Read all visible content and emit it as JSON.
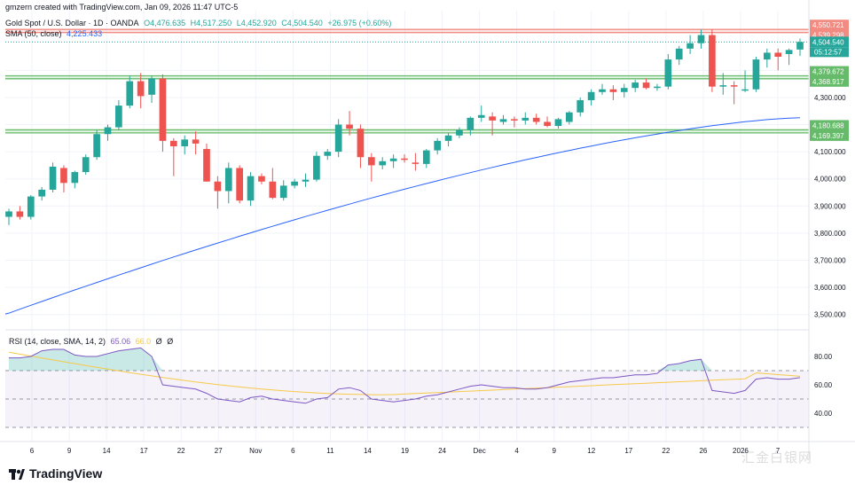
{
  "header": {
    "credit": "gmzern created with TradingView.com, Jan 09, 2026 11:47 UTC-5",
    "symbol_line": "Gold Spot / U.S. Dollar · 1D · OANDA",
    "open": "O4,476.635",
    "high": "H4,517.250",
    "low": "L4,452.920",
    "close": "C4,504.540",
    "change": "+26.975 (+0.60%)",
    "sma_label": "SMA (50, close)",
    "sma_value": "4,225.433"
  },
  "rsi_legend": {
    "label": "RSI (14, close, SMA, 14, 2)",
    "rsi_value": "65.06",
    "sma_value": "66.0",
    "extra1": "Ø",
    "extra2": "Ø"
  },
  "brand": {
    "name": "TradingView"
  },
  "watermark": "汇金白银网",
  "colors": {
    "up": "#26a69a",
    "down": "#ef5350",
    "sma": "#2962ff",
    "rsi": "#7e57c2",
    "rsi_ma": "#f7c948",
    "resistance": "#f28b82",
    "support": "#66bb6a",
    "bg": "#ffffff",
    "grid": "#f0f3fa"
  },
  "chart_data": [
    {
      "type": "candlestick",
      "currency": "USD",
      "ylim": [
        3450,
        4620
      ],
      "yticks": [
        3500,
        3600,
        3700,
        3800,
        3900,
        4000,
        4100,
        4200,
        4300,
        4400
      ],
      "xticks": [
        "6",
        "9",
        "14",
        "17",
        "22",
        "27",
        "Nov",
        "6",
        "11",
        "14",
        "19",
        "24",
        "Dec",
        "4",
        "9",
        "12",
        "17",
        "22",
        "26",
        "2026",
        "7"
      ],
      "ohlc": [
        [
          3860,
          3890,
          3830,
          3880
        ],
        [
          3880,
          3900,
          3850,
          3860
        ],
        [
          3860,
          3940,
          3850,
          3935
        ],
        [
          3935,
          3970,
          3920,
          3960
        ],
        [
          3960,
          4060,
          3950,
          4045
        ],
        [
          4040,
          4050,
          3950,
          3985
        ],
        [
          3985,
          4030,
          3965,
          4025
        ],
        [
          4025,
          4090,
          4015,
          4080
        ],
        [
          4080,
          4180,
          4070,
          4165
        ],
        [
          4165,
          4200,
          4140,
          4190
        ],
        [
          4190,
          4290,
          4180,
          4270
        ],
        [
          4270,
          4380,
          4260,
          4360
        ],
        [
          4360,
          4390,
          4260,
          4305
        ],
        [
          4310,
          4380,
          4280,
          4370
        ],
        [
          4370,
          4385,
          4100,
          4140
        ],
        [
          4140,
          4150,
          4010,
          4120
        ],
        [
          4120,
          4160,
          4090,
          4145
        ],
        [
          4145,
          4175,
          4090,
          4130
        ],
        [
          4110,
          4130,
          3990,
          3990
        ],
        [
          3990,
          4010,
          3890,
          3955
        ],
        [
          3955,
          4060,
          3910,
          4040
        ],
        [
          4040,
          4050,
          3910,
          3920
        ],
        [
          3920,
          4025,
          3900,
          4010
        ],
        [
          4010,
          4020,
          3980,
          3990
        ],
        [
          3990,
          4040,
          3925,
          3930
        ],
        [
          3930,
          3995,
          3920,
          3975
        ],
        [
          3975,
          4000,
          3965,
          3990
        ],
        [
          3990,
          4020,
          3970,
          3997
        ],
        [
          3997,
          4100,
          3990,
          4085
        ],
        [
          4085,
          4110,
          4070,
          4100
        ],
        [
          4100,
          4220,
          4080,
          4200
        ],
        [
          4200,
          4250,
          4160,
          4185
        ],
        [
          4185,
          4200,
          4040,
          4080
        ],
        [
          4080,
          4095,
          3990,
          4050
        ],
        [
          4050,
          4080,
          4035,
          4065
        ],
        [
          4065,
          4090,
          4040,
          4075
        ],
        [
          4075,
          4090,
          4060,
          4070
        ],
        [
          4060,
          4095,
          4030,
          4055
        ],
        [
          4055,
          4110,
          4040,
          4105
        ],
        [
          4105,
          4150,
          4090,
          4140
        ],
        [
          4140,
          4170,
          4120,
          4160
        ],
        [
          4160,
          4190,
          4150,
          4180
        ],
        [
          4180,
          4230,
          4160,
          4225
        ],
        [
          4225,
          4270,
          4210,
          4235
        ],
        [
          4230,
          4245,
          4160,
          4215
        ],
        [
          4210,
          4235,
          4200,
          4220
        ],
        [
          4220,
          4230,
          4190,
          4215
        ],
        [
          4215,
          4245,
          4200,
          4225
        ],
        [
          4225,
          4240,
          4200,
          4210
        ],
        [
          4210,
          4230,
          4190,
          4195
        ],
        [
          4195,
          4225,
          4185,
          4220
        ],
        [
          4210,
          4250,
          4200,
          4245
        ],
        [
          4245,
          4300,
          4230,
          4290
        ],
        [
          4290,
          4330,
          4270,
          4320
        ],
        [
          4320,
          4350,
          4310,
          4330
        ],
        [
          4330,
          4345,
          4290,
          4320
        ],
        [
          4320,
          4350,
          4300,
          4335
        ],
        [
          4335,
          4365,
          4320,
          4355
        ],
        [
          4355,
          4370,
          4330,
          4335
        ],
        [
          4335,
          4350,
          4325,
          4340
        ],
        [
          4340,
          4460,
          4330,
          4440
        ],
        [
          4440,
          4490,
          4420,
          4480
        ],
        [
          4480,
          4530,
          4460,
          4500
        ],
        [
          4500,
          4550,
          4480,
          4530
        ],
        [
          4530,
          4550,
          4320,
          4340
        ],
        [
          4340,
          4390,
          4310,
          4345
        ],
        [
          4345,
          4360,
          4275,
          4340
        ],
        [
          4325,
          4400,
          4320,
          4330
        ],
        [
          4330,
          4450,
          4320,
          4440
        ],
        [
          4440,
          4480,
          4410,
          4465
        ],
        [
          4465,
          4480,
          4400,
          4450
        ],
        [
          4460,
          4480,
          4420,
          4475
        ],
        [
          4476.635,
          4517.25,
          4452.92,
          4504.54
        ]
      ],
      "sma50": {
        "name": "SMA (50, close)",
        "start": 3505,
        "end": 4225.433
      },
      "horizontal_lines": [
        {
          "value": 4550.721,
          "label": "4,550.721",
          "kind": "resistance"
        },
        {
          "value": 4539.298,
          "label": "4,539.298",
          "kind": "resistance"
        },
        {
          "value": 4379.672,
          "label": "4,379.672",
          "kind": "support"
        },
        {
          "value": 4368.917,
          "label": "4,368.917",
          "kind": "support"
        },
        {
          "value": 4180.688,
          "label": "4,180.688",
          "kind": "support"
        },
        {
          "value": 4169.397,
          "label": "4,169.397",
          "kind": "support"
        }
      ],
      "last_price": {
        "value": 4504.54,
        "label": "4,504.540",
        "countdown": "05:12:57"
      }
    },
    {
      "type": "line",
      "name": "RSI (14, close, SMA, 14, 2)",
      "ylim": [
        20,
        95
      ],
      "yticks": [
        40,
        60,
        80
      ],
      "band": [
        30,
        70
      ],
      "rsi": [
        79,
        79,
        80,
        84,
        85,
        85,
        81,
        80,
        80,
        82,
        84,
        85,
        86,
        80,
        60,
        59,
        58,
        57,
        54,
        50,
        49,
        48,
        51,
        52,
        50,
        49,
        48,
        47,
        50,
        51,
        57,
        58,
        56,
        50,
        49,
        48,
        49,
        50,
        52,
        53,
        55,
        57,
        59,
        60,
        59,
        58,
        58,
        57,
        57,
        58,
        60,
        62,
        63,
        64,
        65,
        65,
        66,
        67,
        67,
        68,
        74,
        75,
        77,
        78,
        56,
        55,
        54,
        56,
        64,
        65,
        64,
        64,
        65.06
      ],
      "rsi_sma_start": 83,
      "rsi_sma_min": 53,
      "rsi_sma_end": 66.0
    }
  ]
}
